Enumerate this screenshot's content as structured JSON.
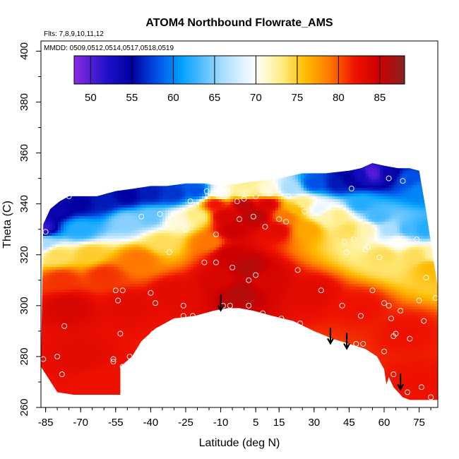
{
  "chart_data": {
    "type": "heatmap",
    "title": "ATOM4 Northbound Flowrate_AMS",
    "subtitle_1": "Flts: 7,8,9,10,11,12",
    "subtitle_2": "MMDD: 0509,0512,0514,0517,0518,0519",
    "xlabel": "Latitude (deg N)",
    "ylabel": "Theta (C)",
    "xlim": [
      -87,
      83
    ],
    "ylim": [
      260,
      404
    ],
    "xticks": [
      -85,
      -70,
      -55,
      -40,
      -25,
      -10,
      5,
      15,
      30,
      45,
      60,
      75
    ],
    "yticks": [
      260,
      280,
      300,
      320,
      340,
      360,
      380,
      400
    ],
    "colorbar": {
      "range": [
        48,
        88
      ],
      "ticks": [
        50,
        55,
        60,
        65,
        70,
        75,
        80,
        85
      ],
      "stops": [
        {
          "value": 48,
          "color": "#8a2be2"
        },
        {
          "value": 52,
          "color": "#1e10c8"
        },
        {
          "value": 55,
          "color": "#0000a0"
        },
        {
          "value": 58,
          "color": "#0050e6"
        },
        {
          "value": 61,
          "color": "#00a0ff"
        },
        {
          "value": 66,
          "color": "#aaddff"
        },
        {
          "value": 70,
          "color": "#ffffff"
        },
        {
          "value": 73,
          "color": "#ffee88"
        },
        {
          "value": 76,
          "color": "#ffbb00"
        },
        {
          "value": 79,
          "color": "#ff7700"
        },
        {
          "value": 82,
          "color": "#ee1100"
        },
        {
          "value": 85,
          "color": "#cc0000"
        },
        {
          "value": 88,
          "color": "#882222"
        }
      ]
    },
    "upper_boundary": [
      [
        -86,
        332
      ],
      [
        -83,
        338
      ],
      [
        -79,
        341
      ],
      [
        -75,
        343
      ],
      [
        -70,
        343
      ],
      [
        -63,
        343
      ],
      [
        -55,
        345
      ],
      [
        -47,
        346
      ],
      [
        -40,
        347
      ],
      [
        -33,
        347
      ],
      [
        -25,
        348
      ],
      [
        -17,
        348
      ],
      [
        -10,
        347
      ],
      [
        -2,
        348
      ],
      [
        6,
        349
      ],
      [
        15,
        350
      ],
      [
        25,
        352
      ],
      [
        35,
        352
      ],
      [
        45,
        353
      ],
      [
        50,
        354
      ],
      [
        55,
        356
      ],
      [
        60,
        355
      ],
      [
        66,
        354
      ],
      [
        71,
        354
      ],
      [
        75,
        353
      ],
      [
        78,
        337
      ]
    ],
    "lower_boundary": [
      [
        -87,
        276
      ],
      [
        -80,
        266
      ],
      [
        -73,
        265
      ],
      [
        -66,
        265
      ],
      [
        -60,
        265
      ],
      [
        -53,
        265
      ],
      [
        -53,
        276
      ],
      [
        -48,
        280
      ],
      [
        -44,
        286
      ],
      [
        -38,
        291
      ],
      [
        -30,
        295
      ],
      [
        -21,
        296
      ],
      [
        -13,
        298
      ],
      [
        -7,
        299
      ],
      [
        -2,
        299
      ],
      [
        4,
        298
      ],
      [
        12,
        296
      ],
      [
        21,
        294
      ],
      [
        30,
        290
      ],
      [
        38,
        287
      ],
      [
        45,
        285
      ],
      [
        52,
        283
      ],
      [
        57,
        280
      ],
      [
        60,
        275
      ],
      [
        61,
        269
      ],
      [
        62,
        272
      ],
      [
        64,
        268
      ],
      [
        68,
        264
      ],
      [
        71,
        263
      ],
      [
        78,
        263
      ],
      [
        83,
        263
      ],
      [
        83,
        307
      ]
    ],
    "upper_band_colors": [
      [
        -87,
        330,
        51
      ],
      [
        -80,
        338,
        54
      ],
      [
        -70,
        340,
        55
      ],
      [
        -60,
        341,
        56
      ],
      [
        -50,
        343,
        55
      ],
      [
        -40,
        344,
        56
      ],
      [
        -30,
        344,
        57
      ],
      [
        -20,
        345,
        58
      ],
      [
        -10,
        344,
        70
      ],
      [
        0,
        344,
        72
      ],
      [
        10,
        345,
        71
      ],
      [
        20,
        346,
        66
      ],
      [
        30,
        348,
        58
      ],
      [
        40,
        348,
        56
      ],
      [
        45,
        350,
        55
      ],
      [
        50,
        351,
        53
      ],
      [
        55,
        352,
        50
      ],
      [
        62,
        352,
        54
      ],
      [
        70,
        350,
        58
      ],
      [
        76,
        345,
        60
      ]
    ],
    "anchors": [
      [
        -86,
        325,
        66
      ],
      [
        -80,
        320,
        74
      ],
      [
        -78,
        310,
        81
      ],
      [
        -75,
        300,
        84
      ],
      [
        -70,
        330,
        62
      ],
      [
        -66,
        320,
        75
      ],
      [
        -60,
        312,
        81
      ],
      [
        -50,
        333,
        65
      ],
      [
        -45,
        318,
        79
      ],
      [
        -40,
        335,
        64
      ],
      [
        -35,
        325,
        74
      ],
      [
        -28,
        333,
        71
      ],
      [
        -20,
        335,
        73
      ],
      [
        -15,
        325,
        79
      ],
      [
        -12,
        340,
        82
      ],
      [
        -8,
        335,
        84
      ],
      [
        -5,
        330,
        85
      ],
      [
        0,
        340,
        86
      ],
      [
        5,
        335,
        86
      ],
      [
        10,
        340,
        84
      ],
      [
        14,
        330,
        83
      ],
      [
        18,
        335,
        79
      ],
      [
        22,
        338,
        76
      ],
      [
        25,
        340,
        73
      ],
      [
        27,
        330,
        77
      ],
      [
        32,
        338,
        69
      ],
      [
        36,
        335,
        72
      ],
      [
        40,
        335,
        73
      ],
      [
        45,
        330,
        74
      ],
      [
        50,
        340,
        62
      ],
      [
        52,
        330,
        72
      ],
      [
        57,
        335,
        63
      ],
      [
        60,
        320,
        74
      ],
      [
        63,
        330,
        66
      ],
      [
        66,
        325,
        70
      ],
      [
        70,
        330,
        63
      ],
      [
        73,
        320,
        74
      ],
      [
        77,
        330,
        62
      ],
      [
        80,
        315,
        76
      ],
      [
        82,
        320,
        72
      ],
      [
        -50,
        300,
        83
      ],
      [
        -30,
        305,
        83
      ],
      [
        -10,
        310,
        84
      ],
      [
        10,
        310,
        84
      ],
      [
        30,
        305,
        83
      ],
      [
        50,
        300,
        82
      ],
      [
        70,
        290,
        82
      ],
      [
        -70,
        280,
        83
      ],
      [
        -60,
        270,
        82
      ],
      [
        75,
        270,
        82
      ],
      [
        -6,
        320,
        85
      ],
      [
        -2,
        305,
        86
      ],
      [
        2,
        315,
        86
      ]
    ],
    "sample_points": [
      [
        -86,
        279
      ],
      [
        -85,
        329
      ],
      [
        -80,
        280
      ],
      [
        -78,
        273
      ],
      [
        -77,
        292
      ],
      [
        -75,
        343
      ],
      [
        -56,
        279
      ],
      [
        -56,
        278
      ],
      [
        -55,
        306
      ],
      [
        -54,
        302
      ],
      [
        -53,
        289
      ],
      [
        -52,
        306
      ],
      [
        -52,
        276
      ],
      [
        -49,
        280
      ],
      [
        -44,
        335
      ],
      [
        -40,
        305
      ],
      [
        -39,
        289
      ],
      [
        -38,
        301
      ],
      [
        -36,
        336
      ],
      [
        -33,
        292
      ],
      [
        -32,
        321
      ],
      [
        -30,
        336
      ],
      [
        -26,
        300
      ],
      [
        -26,
        296
      ],
      [
        -25,
        330
      ],
      [
        -23,
        341
      ],
      [
        -22,
        296
      ],
      [
        -17,
        317
      ],
      [
        -16,
        345
      ],
      [
        -12,
        328
      ],
      [
        -12,
        317
      ],
      [
        -9,
        300
      ],
      [
        -6,
        300
      ],
      [
        -5,
        315
      ],
      [
        -3,
        341
      ],
      [
        -2,
        334
      ],
      [
        0,
        342
      ],
      [
        2,
        310
      ],
      [
        2,
        300
      ],
      [
        4,
        335
      ],
      [
        5,
        343
      ],
      [
        5,
        312
      ],
      [
        8,
        297
      ],
      [
        9,
        331
      ],
      [
        11,
        344
      ],
      [
        15,
        334
      ],
      [
        16,
        295
      ],
      [
        18,
        333
      ],
      [
        19,
        343
      ],
      [
        23,
        314
      ],
      [
        24,
        293
      ],
      [
        26,
        337
      ],
      [
        33,
        306
      ],
      [
        42,
        300
      ],
      [
        43,
        325
      ],
      [
        44,
        321
      ],
      [
        46,
        346
      ],
      [
        47,
        326
      ],
      [
        48,
        285
      ],
      [
        50,
        296
      ],
      [
        51,
        285
      ],
      [
        52,
        322
      ],
      [
        53,
        323
      ],
      [
        55,
        306
      ],
      [
        58,
        319
      ],
      [
        60,
        282
      ],
      [
        60,
        301
      ],
      [
        62,
        300
      ],
      [
        62,
        350
      ],
      [
        63,
        295
      ],
      [
        64,
        288
      ],
      [
        64,
        273
      ],
      [
        65,
        289
      ],
      [
        67,
        298
      ],
      [
        68,
        349
      ],
      [
        70,
        266
      ],
      [
        71,
        287
      ],
      [
        74,
        326
      ],
      [
        75,
        302
      ],
      [
        76,
        268
      ],
      [
        77,
        294
      ],
      [
        78,
        311
      ],
      [
        80,
        264
      ],
      [
        82,
        303
      ]
    ],
    "arrows": [
      {
        "lat": -10,
        "theta": 299
      },
      {
        "lat": 37,
        "theta": 286
      },
      {
        "lat": 44,
        "theta": 284
      },
      {
        "lat": 67,
        "theta": 268
      }
    ]
  }
}
